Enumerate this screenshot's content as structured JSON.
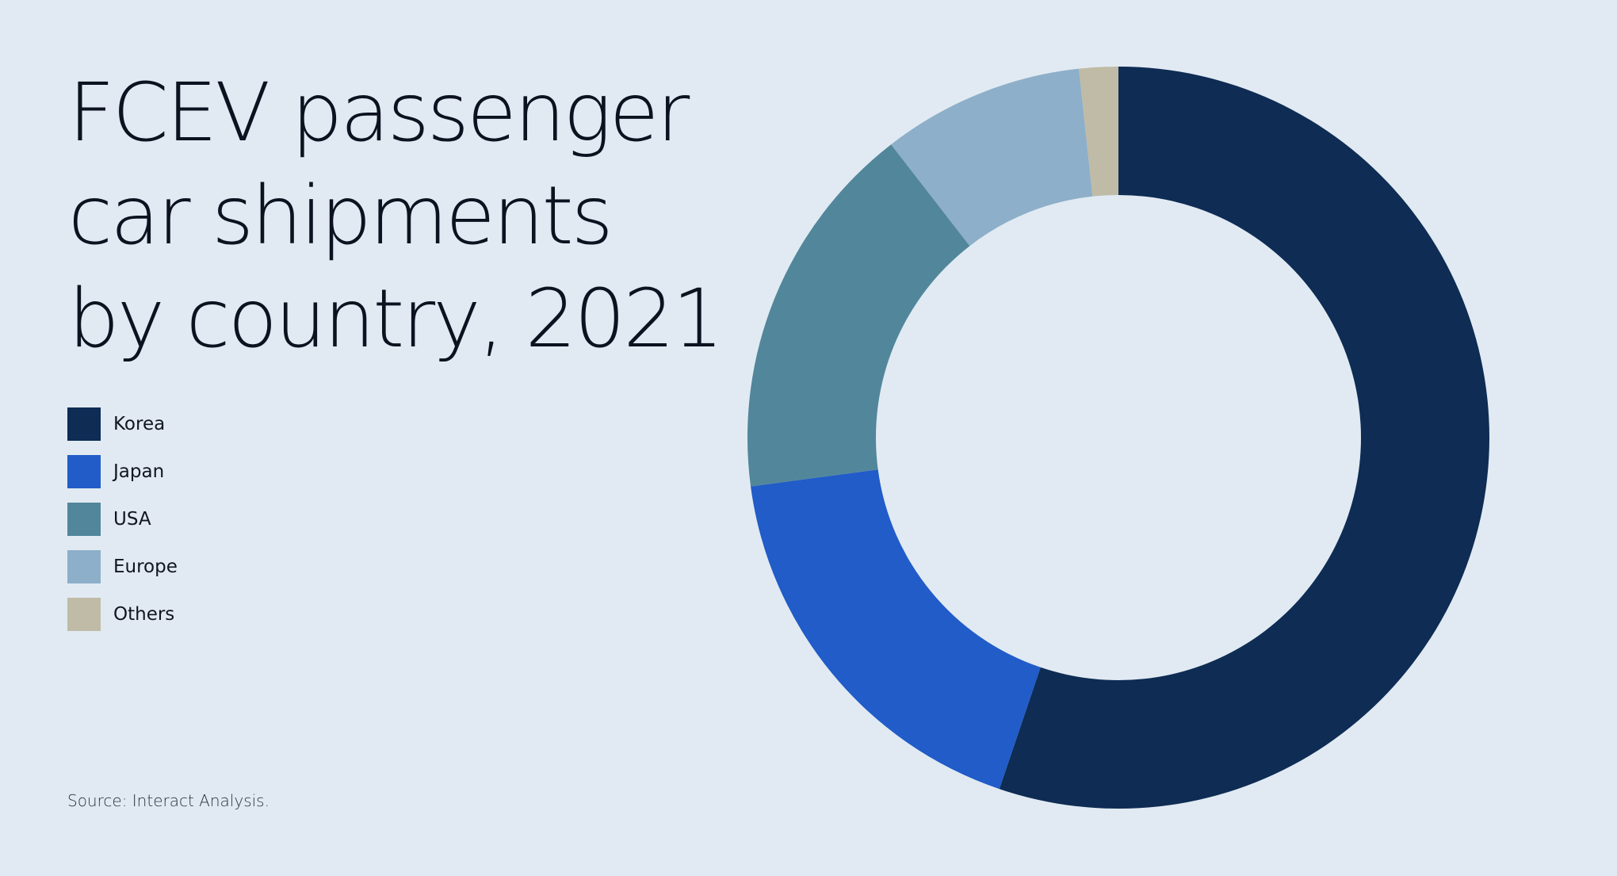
{
  "title_lines": [
    "FCEV passenger",
    "car shipments",
    "by country, 2021"
  ],
  "source": "Source: Interact Analysis.",
  "chart_data": {
    "type": "pie",
    "variant": "donut",
    "title": "FCEV passenger car shipments by country, 2021",
    "categories": [
      "Korea",
      "Japan",
      "USA",
      "Europe",
      "Others"
    ],
    "values": [
      55.2,
      17.7,
      16.6,
      8.8,
      1.7
    ],
    "unit": "%",
    "colors": [
      "#0e2c54",
      "#215cc8",
      "#52869b",
      "#8dafc9",
      "#c0bba6"
    ],
    "legend_position": "left",
    "start_angle": "12 o'clock",
    "direction": "clockwise"
  }
}
